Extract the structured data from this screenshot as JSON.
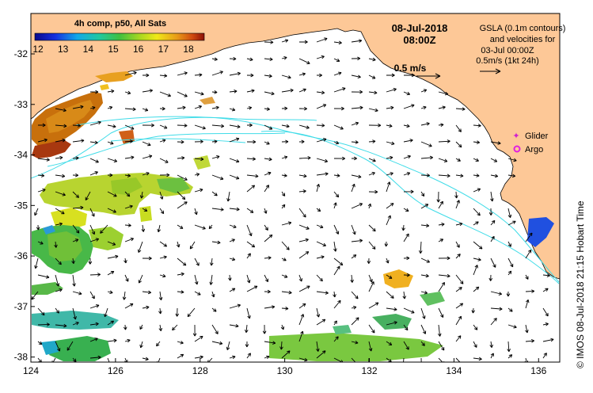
{
  "map": {
    "colorbar_title": "4h comp, p50, All Sats",
    "colorbar_ticks": [
      "12",
      "13",
      "14",
      "15",
      "16",
      "17",
      "18"
    ],
    "date_line": "08-Jul-2018",
    "time_line": "08:00Z",
    "legend_lines": [
      "GSLA (0.1m contours)",
      "and velocities for",
      "03-Jul 00:00Z",
      "0.5m/s (1kt 24h)"
    ],
    "scale_label": "0.5 m/s",
    "glider_label": "Glider",
    "argo_label": "Argo",
    "credit": "© IMOS 08-Jul-2018 21:15 Hobart Time",
    "x_ticks": [
      "124",
      "126",
      "128",
      "130",
      "132",
      "134",
      "136"
    ],
    "y_ticks": [
      "-32",
      "-33",
      "-34",
      "-35",
      "-36",
      "-37",
      "-38"
    ],
    "x_range": [
      124,
      136.5
    ],
    "y_range": [
      -38.1,
      -31.2
    ],
    "colors": {
      "land": "#fdc897",
      "contour": "#40dce8",
      "glider": "#d020d0",
      "argo": "#e020e0",
      "vector": "#000000"
    }
  }
}
